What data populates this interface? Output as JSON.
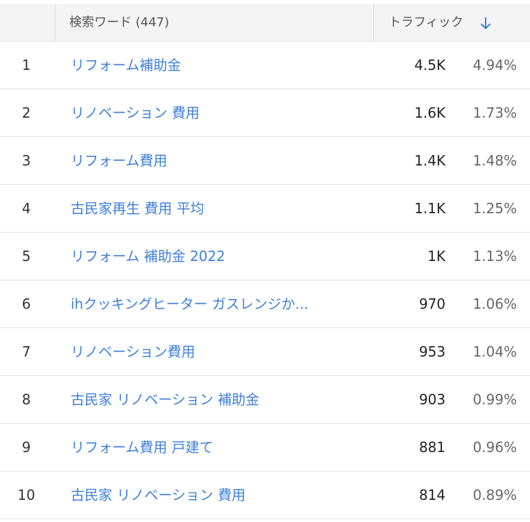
{
  "header": {
    "keyword_label": "検索ワード",
    "keyword_count": "(447)",
    "traffic_label": "トラフィック",
    "sort_icon": "arrow-down-icon",
    "accent_color": "#3f7fd6"
  },
  "rows": [
    {
      "rank": "1",
      "keyword": "リフォーム補助金",
      "traffic": "4.5K",
      "share": "4.94%"
    },
    {
      "rank": "2",
      "keyword": "リノベーション 費用",
      "traffic": "1.6K",
      "share": "1.73%"
    },
    {
      "rank": "3",
      "keyword": "リフォーム費用",
      "traffic": "1.4K",
      "share": "1.48%"
    },
    {
      "rank": "4",
      "keyword": "古民家再生 費用 平均",
      "traffic": "1.1K",
      "share": "1.25%"
    },
    {
      "rank": "5",
      "keyword": "リフォーム 補助金 2022",
      "traffic": "1K",
      "share": "1.13%"
    },
    {
      "rank": "6",
      "keyword": "ihクッキングヒーター ガスレンジか...",
      "traffic": "970",
      "share": "1.06%"
    },
    {
      "rank": "7",
      "keyword": "リノベーション費用",
      "traffic": "953",
      "share": "1.04%"
    },
    {
      "rank": "8",
      "keyword": "古民家 リノベーション 補助金",
      "traffic": "903",
      "share": "0.99%"
    },
    {
      "rank": "9",
      "keyword": "リフォーム費用 戸建て",
      "traffic": "881",
      "share": "0.96%"
    },
    {
      "rank": "10",
      "keyword": "古民家 リノベーション 費用",
      "traffic": "814",
      "share": "0.89%"
    }
  ]
}
